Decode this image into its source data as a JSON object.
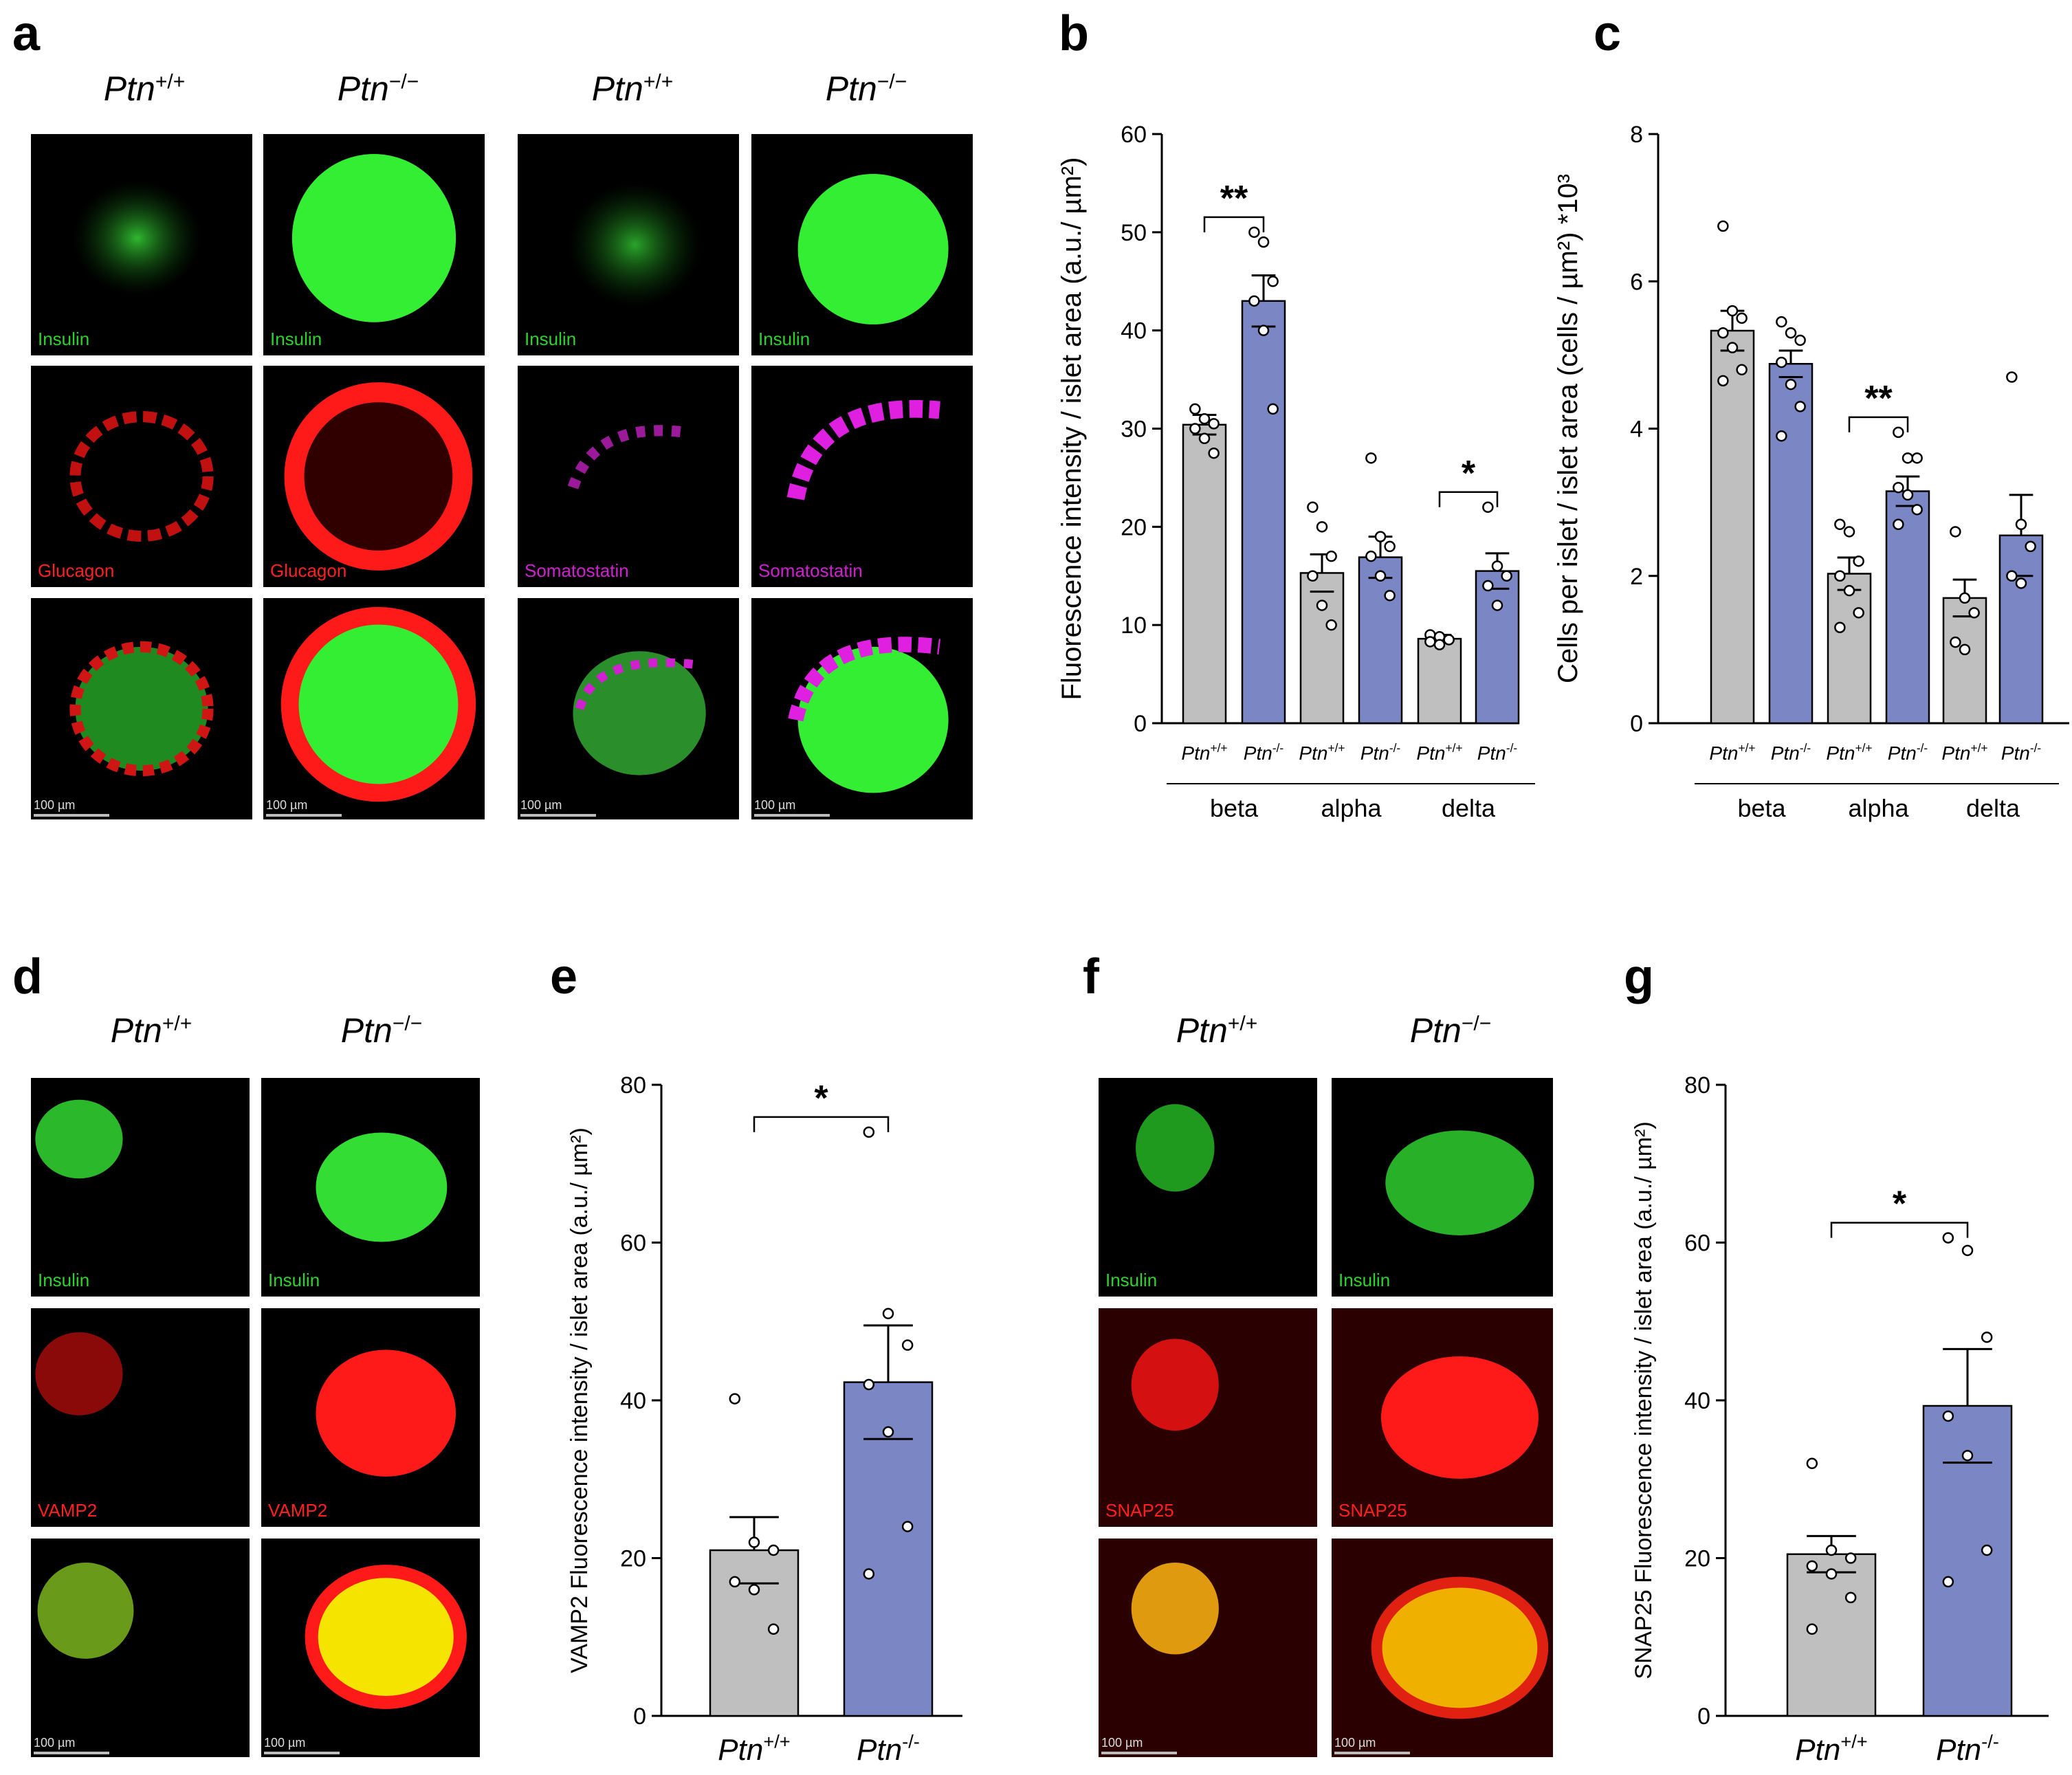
{
  "panels": {
    "a": "a",
    "b": "b",
    "c": "c",
    "d": "d",
    "e": "e",
    "f": "f",
    "g": "g"
  },
  "genotypes": {
    "wt": "Ptn",
    "wt_sup": "+/+",
    "ko": "Ptn",
    "ko_sup": "−/−",
    "ko_sup_short": "-/-"
  },
  "stains": {
    "insulin": "Insulin",
    "glucagon": "Glucagon",
    "somatostatin": "Somatostatin",
    "vamp2": "VAMP2",
    "snap25": "SNAP25"
  },
  "scalebar": "100 µm",
  "colors": {
    "wt_bar": "#bfbfbf",
    "ko_bar": "#7b87c4",
    "insulin": "#33ff33",
    "glucagon": "#ff1a1a",
    "somatostatin": "#e020e0",
    "yellow": "#f5e400"
  },
  "chart_data": [
    {
      "id": "b",
      "type": "bar",
      "ylabel": "Fluorescence intensity / islet area (a.u./ µm²)",
      "ylim": [
        0,
        60
      ],
      "yticks": [
        0,
        10,
        20,
        30,
        40,
        50,
        60
      ],
      "groups": [
        "beta",
        "alpha",
        "delta"
      ],
      "categories": [
        "Ptn+/+",
        "Ptn-/-",
        "Ptn+/+",
        "Ptn-/-",
        "Ptn+/+",
        "Ptn-/-"
      ],
      "values": [
        30.4,
        43.0,
        15.3,
        16.9,
        8.6,
        15.5
      ],
      "errors": [
        1.0,
        2.6,
        1.9,
        2.1,
        0.4,
        1.8
      ],
      "points": [
        [
          32,
          31,
          30.5,
          30,
          29,
          27.5
        ],
        [
          50,
          49,
          45,
          43,
          40,
          32
        ],
        [
          22,
          20,
          17,
          15,
          12,
          10
        ],
        [
          27,
          19,
          18,
          17,
          15,
          13
        ],
        [
          9,
          8.8,
          8.5,
          8.3,
          8
        ],
        [
          22,
          16,
          15,
          14,
          12
        ]
      ],
      "significance": [
        {
          "pair": [
            0,
            1
          ],
          "label": "**"
        },
        {
          "pair": [
            4,
            5
          ],
          "label": "*"
        }
      ]
    },
    {
      "id": "c",
      "type": "bar",
      "ylabel": "Cells per islet / islet area (cells / µm²) *10³",
      "ylim": [
        0,
        8
      ],
      "yticks": [
        0,
        2,
        4,
        6,
        8
      ],
      "groups": [
        "beta",
        "alpha",
        "delta"
      ],
      "categories": [
        "Ptn+/+",
        "Ptn-/-",
        "Ptn+/+",
        "Ptn-/-",
        "Ptn+/+",
        "Ptn-/-"
      ],
      "values": [
        5.33,
        4.88,
        2.03,
        3.15,
        1.7,
        2.55
      ],
      "errors": [
        0.27,
        0.18,
        0.22,
        0.2,
        0.25,
        0.55
      ],
      "points": [
        [
          6.75,
          5.6,
          5.5,
          5.3,
          5.1,
          4.8,
          4.65
        ],
        [
          5.45,
          5.3,
          5.2,
          4.9,
          4.6,
          4.3,
          3.9
        ],
        [
          2.7,
          2.6,
          2.2,
          2.0,
          1.8,
          1.5,
          1.3
        ],
        [
          3.95,
          3.6,
          3.6,
          3.2,
          3.1,
          2.9,
          2.7
        ],
        [
          2.6,
          1.7,
          1.5,
          1.1,
          1.0
        ],
        [
          4.7,
          2.7,
          2.4,
          2.0,
          1.9
        ]
      ],
      "significance": [
        {
          "pair": [
            2,
            3
          ],
          "label": "**"
        }
      ]
    },
    {
      "id": "e",
      "type": "bar",
      "ylabel": "VAMP2 Fluorescence intensity / islet area (a.u./ µm²)",
      "ylim": [
        0,
        80
      ],
      "yticks": [
        0,
        20,
        40,
        60,
        80
      ],
      "categories": [
        "Ptn+/+",
        "Ptn-/-"
      ],
      "values": [
        21,
        42.3
      ],
      "errors": [
        4.2,
        7.2
      ],
      "points": [
        [
          40.2,
          22,
          21,
          17,
          16,
          11
        ],
        [
          74,
          51,
          47,
          42,
          36,
          24,
          18
        ]
      ],
      "significance": [
        {
          "pair": [
            0,
            1
          ],
          "label": "*"
        }
      ]
    },
    {
      "id": "g",
      "type": "bar",
      "ylabel": "SNAP25 Fluorescence intensity / islet area (a.u./ µm²)",
      "ylim": [
        0,
        80
      ],
      "yticks": [
        0,
        20,
        40,
        60,
        80
      ],
      "categories": [
        "Ptn+/+",
        "Ptn-/-"
      ],
      "values": [
        20.5,
        39.3
      ],
      "errors": [
        2.3,
        7.2
      ],
      "points": [
        [
          32,
          21,
          20,
          19,
          18,
          15,
          11
        ],
        [
          60.6,
          59,
          48,
          38,
          33,
          21,
          17
        ]
      ],
      "significance": [
        {
          "pair": [
            0,
            1
          ],
          "label": "*"
        }
      ]
    }
  ]
}
